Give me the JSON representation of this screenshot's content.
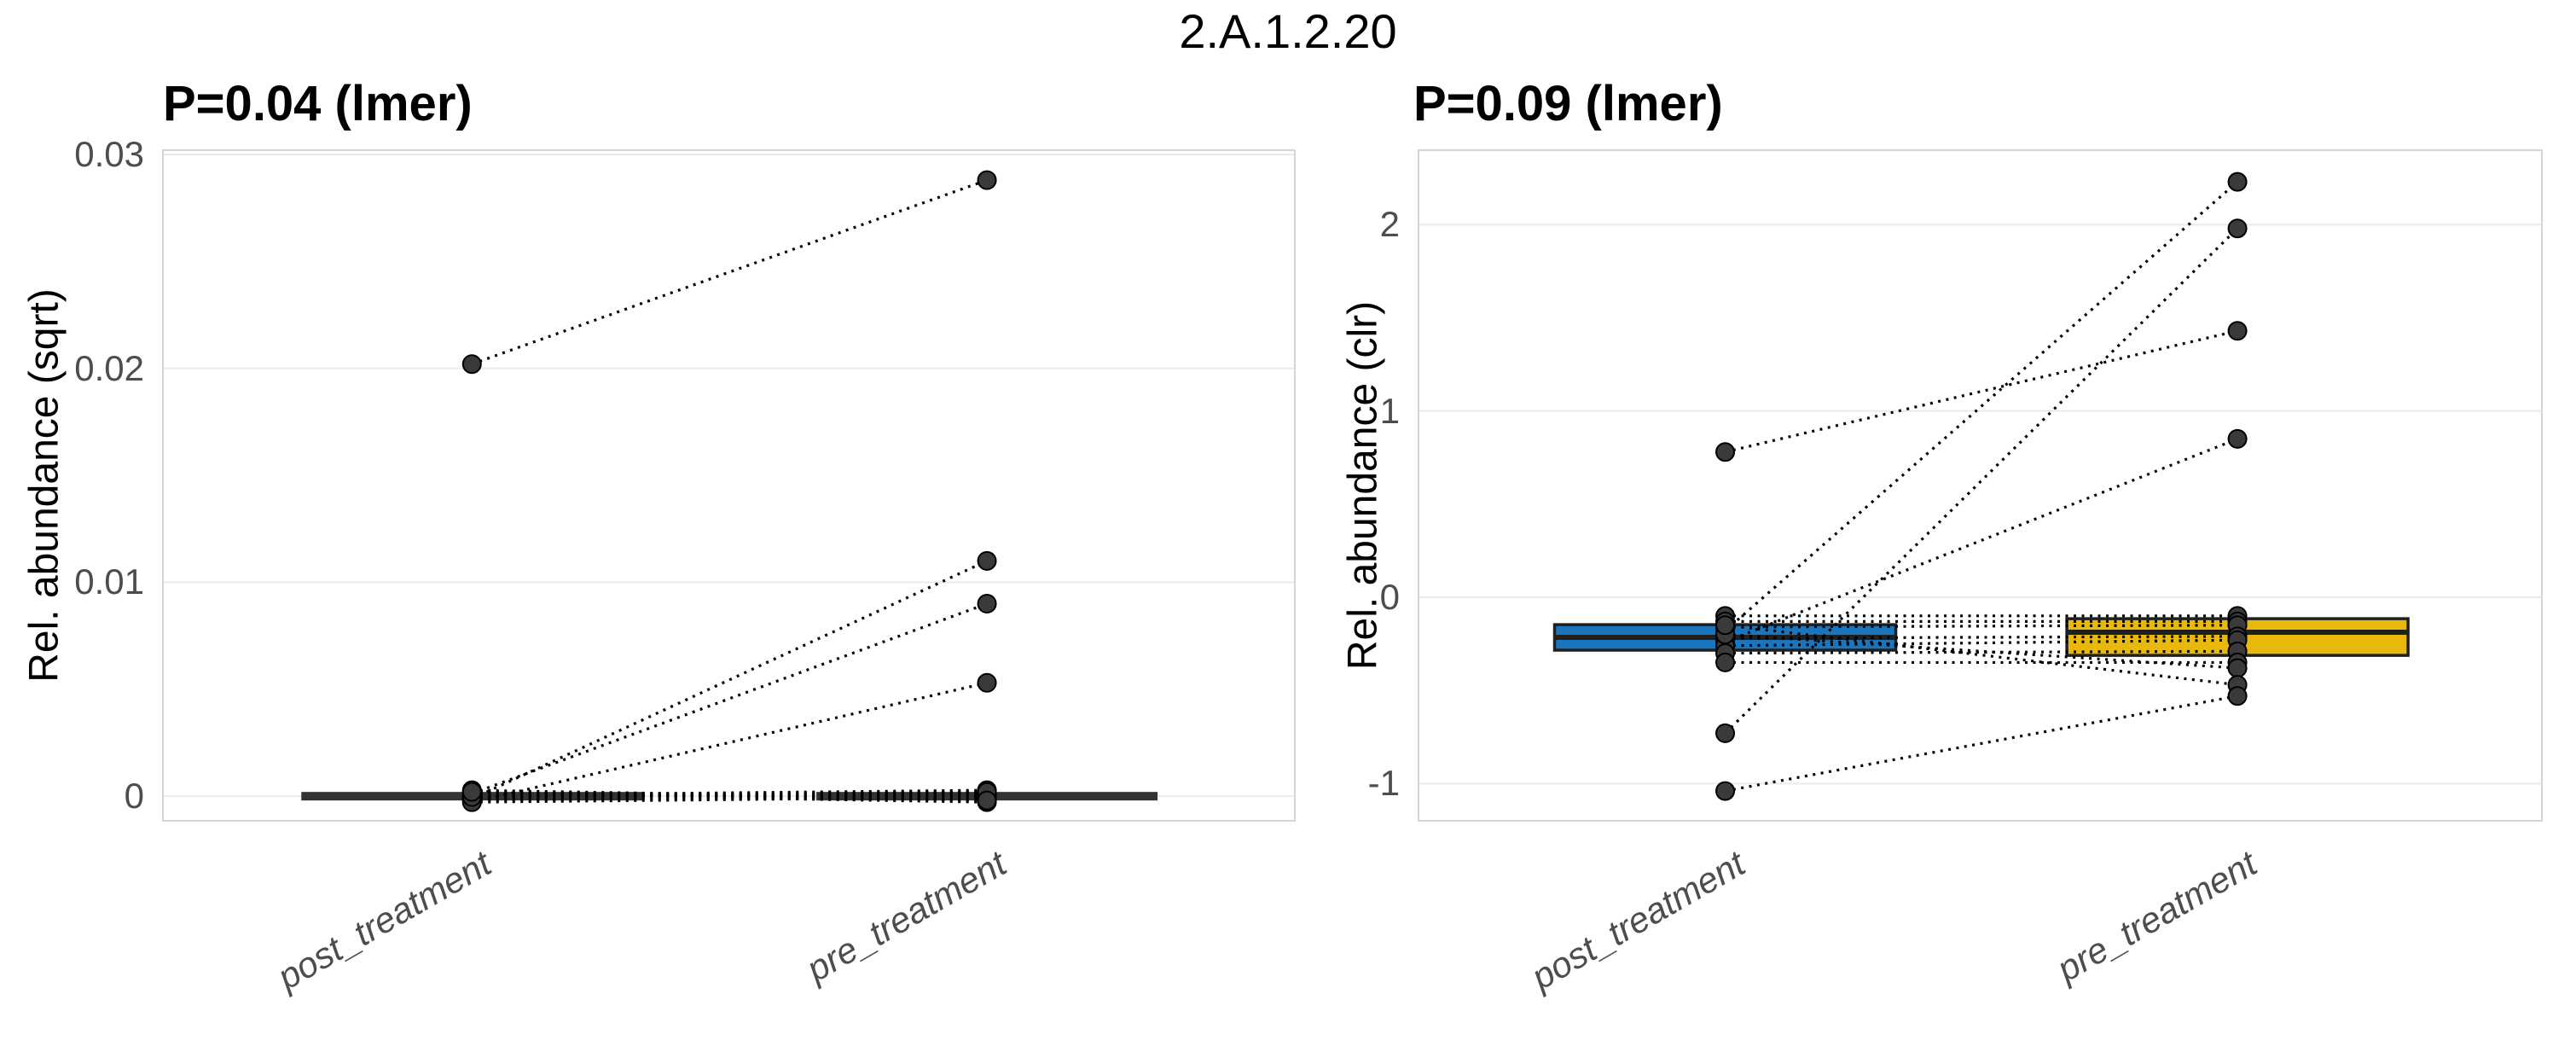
{
  "title": "2.A.1.2.20",
  "style": {
    "grid_color": "#EBEBEB",
    "panel_border_color": "#D5D5D5",
    "tick_label_color": "#4D4D4D",
    "point_fill": "#3A3A3A",
    "point_stroke": "#000000",
    "pair_line_color": "#000000",
    "box_border_color": "#1F1F1F",
    "collapsed_box_color": "#333333",
    "post_box_fill": "#1B75BC",
    "pre_box_fill": "#E8B90A"
  },
  "chart_data": [
    {
      "type": "paired-boxplot",
      "title": "P=0.04 (lmer)",
      "ylabel": "Rel. abundance (sqrt)",
      "xlabel": "",
      "categories": [
        "post_treatment",
        "pre_treatment"
      ],
      "ytick_labels": [
        "0",
        "0.01",
        "0.02",
        "0.03"
      ],
      "ytick_values": [
        0,
        0.01,
        0.02,
        0.03
      ],
      "ylim": [
        -0.00115,
        0.0302
      ],
      "grid": true,
      "legend": "none",
      "boxes": [
        {
          "category": "post_treatment",
          "fill": "#333333",
          "q1": 0,
          "median": 0,
          "q3": 0,
          "collapsed": true
        },
        {
          "category": "pre_treatment",
          "fill": "#333333",
          "q1": 0,
          "median": 0,
          "q3": 0,
          "collapsed": true
        }
      ],
      "pairs": [
        [
          0.0202,
          0.0288
        ],
        [
          0,
          0.011
        ],
        [
          0,
          0.009
        ],
        [
          0,
          0.0053
        ],
        [
          0,
          0
        ],
        [
          0,
          0
        ],
        [
          0,
          0
        ],
        [
          0,
          0
        ],
        [
          0,
          0
        ],
        [
          0,
          0
        ],
        [
          0,
          0
        ],
        [
          0,
          0
        ],
        [
          0,
          0
        ],
        [
          0,
          0
        ]
      ]
    },
    {
      "type": "paired-boxplot",
      "title": "P=0.09 (lmer)",
      "ylabel": "Rel. abundance (clr)",
      "xlabel": "",
      "categories": [
        "post_treatment",
        "pre_treatment"
      ],
      "ytick_labels": [
        "-1",
        "0",
        "1",
        "2"
      ],
      "ytick_values": [
        -1,
        0,
        1,
        2
      ],
      "ylim": [
        -1.2,
        2.4
      ],
      "grid": true,
      "legend": "none",
      "boxes": [
        {
          "category": "post_treatment",
          "fill": "#1B75BC",
          "q1": -0.284,
          "median": -0.215,
          "q3": -0.147
        },
        {
          "category": "pre_treatment",
          "fill": "#E8B90A",
          "q1": -0.312,
          "median": -0.188,
          "q3": -0.115,
          "whisker_low": -0.53
        }
      ],
      "pairs": [
        [
          -0.18,
          2.23
        ],
        [
          -0.73,
          1.98
        ],
        [
          0.78,
          1.43
        ],
        [
          -0.24,
          0.85
        ],
        [
          -0.1,
          -0.1
        ],
        [
          -0.13,
          -0.13
        ],
        [
          -0.16,
          -0.15
        ],
        [
          -0.22,
          -0.21
        ],
        [
          -0.26,
          -0.23
        ],
        [
          -0.3,
          -0.29
        ],
        [
          -0.35,
          -0.35
        ],
        [
          -0.2,
          -0.38
        ],
        [
          -0.15,
          -0.47
        ],
        [
          -1.04,
          -0.53
        ]
      ]
    }
  ]
}
